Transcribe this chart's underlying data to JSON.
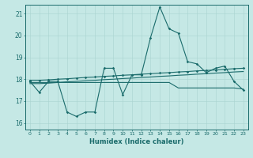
{
  "xlabel": "Humidex (Indice chaleur)",
  "bg_color": "#c5e8e5",
  "line_color": "#1a6b6b",
  "grid_color": "#aad4d0",
  "xlim": [
    -0.5,
    23.5
  ],
  "ylim": [
    15.7,
    21.4
  ],
  "yticks": [
    16,
    17,
    18,
    19,
    20,
    21
  ],
  "xticks": [
    0,
    1,
    2,
    3,
    4,
    5,
    6,
    7,
    8,
    9,
    10,
    11,
    12,
    13,
    14,
    15,
    16,
    17,
    18,
    19,
    20,
    21,
    22,
    23
  ],
  "series1": [
    17.9,
    17.4,
    17.9,
    17.9,
    16.5,
    16.3,
    16.5,
    16.5,
    18.5,
    18.5,
    17.3,
    18.2,
    18.2,
    19.9,
    21.3,
    20.3,
    20.1,
    18.8,
    18.7,
    18.3,
    18.5,
    18.6,
    17.9,
    17.5
  ],
  "series2": [
    17.95,
    17.95,
    17.97,
    18.0,
    18.02,
    18.05,
    18.08,
    18.1,
    18.13,
    18.15,
    18.18,
    18.2,
    18.23,
    18.25,
    18.28,
    18.3,
    18.33,
    18.35,
    18.38,
    18.4,
    18.42,
    18.45,
    18.48,
    18.5
  ],
  "series3": [
    17.8,
    17.8,
    17.82,
    17.85,
    17.88,
    17.9,
    17.93,
    17.95,
    17.98,
    18.0,
    18.03,
    18.05,
    18.08,
    18.1,
    18.13,
    18.15,
    18.18,
    18.2,
    18.23,
    18.25,
    18.28,
    18.3,
    18.33,
    18.35
  ],
  "series4": [
    17.85,
    17.85,
    17.85,
    17.85,
    17.85,
    17.85,
    17.85,
    17.85,
    17.85,
    17.85,
    17.85,
    17.85,
    17.85,
    17.85,
    17.85,
    17.85,
    17.6,
    17.6,
    17.6,
    17.6,
    17.6,
    17.6,
    17.6,
    17.55
  ]
}
